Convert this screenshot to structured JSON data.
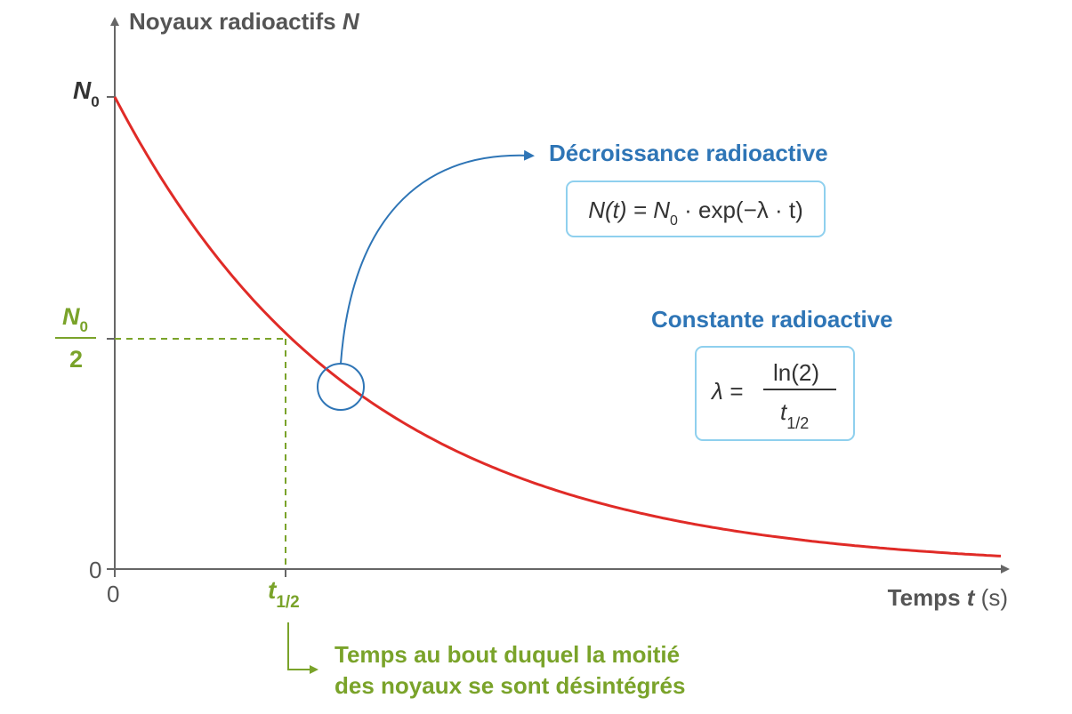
{
  "colors": {
    "axis": "#666666",
    "curve": "#e02b27",
    "halflife": "#7aa32a",
    "annotation": "#2e75b6",
    "box_border": "#8fd0ee"
  },
  "axes": {
    "y_label": "Noyaux radioactifs",
    "y_label_var": "N",
    "x_label_word": "Temps",
    "x_label_var": "t",
    "x_label_unit": "(s)",
    "y_tick_zero": "0",
    "x_tick_zero": "0",
    "y_tick_N0": "N",
    "y_tick_N0_sub": "0",
    "y_half_num": "N",
    "y_half_num_sub": "0",
    "y_half_den": "2",
    "x_half_main": "t",
    "x_half_sub": "1/2"
  },
  "decay_block": {
    "title": "Décroissance radioactive",
    "formula_part1": "N(t) = N",
    "formula_sub": "0",
    "formula_part2": " · exp(−λ · t)"
  },
  "constant_block": {
    "title": "Constante radioactive",
    "lhs": "λ =",
    "num": "ln(2)",
    "den_main": "t",
    "den_sub": "1/2"
  },
  "halflife_note": {
    "line1": "Temps au bout duquel la moitié",
    "line2": "des noyaux se sont désintégrés"
  }
}
